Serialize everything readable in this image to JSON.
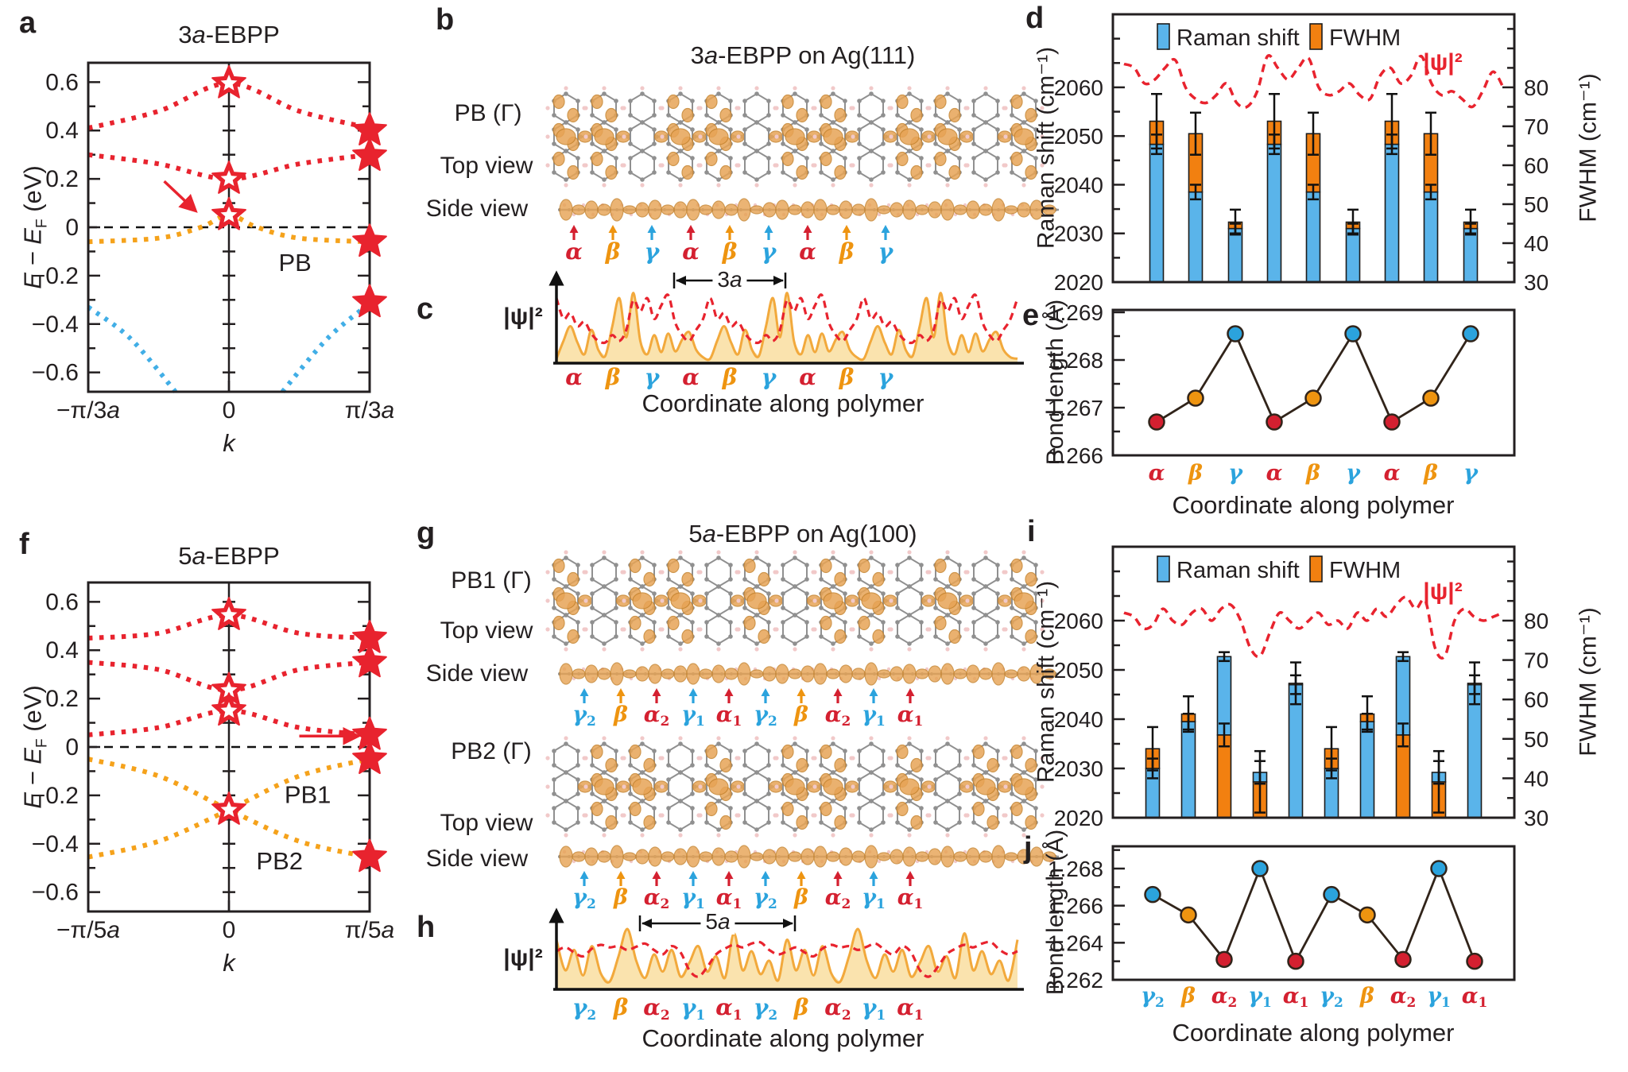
{
  "colors": {
    "red": "#e8232e",
    "orange_band": "#f5a21b",
    "blue_band": "#41aee6",
    "bar_blue": "#5ab4ea",
    "bar_orange": "#f28010",
    "line_dark": "#31241a",
    "axis": "#231f20",
    "site_red": "#d42030",
    "site_orange": "#ee9410",
    "site_blue": "#2ba3dd",
    "blob": "#e7a456",
    "blob_edge": "#c6842f",
    "atom": "#909090",
    "hydrogen": "#f1c9c9",
    "area_fill": "#fae3ae",
    "area_line": "#f2a93c"
  },
  "panel_a": {
    "label": "a",
    "title": {
      "pre": "3",
      "it": "a",
      "post": "-EBPP"
    },
    "ylabel": {
      "main": "E − E",
      "sub": "F",
      "unit": " (eV)"
    },
    "xlabel": "k",
    "xticks": [
      {
        "pre": "−π/3",
        "it": "a"
      },
      {
        "pre": "0",
        "it": ""
      },
      {
        "pre": "π/3",
        "it": "a"
      }
    ],
    "yticks": [
      "0.6",
      "0.4",
      "0.2",
      "0",
      "−0.2",
      "−0.4",
      "−0.6"
    ],
    "band_labels": [
      {
        "text": "PB",
        "k": 0.47,
        "E": -0.145
      }
    ],
    "bands": [
      {
        "color": "red",
        "pts": [
          [
            -1,
            0.41
          ],
          [
            -0.5,
            0.48
          ],
          [
            0,
            0.595
          ],
          [
            0.5,
            0.48
          ],
          [
            1,
            0.41
          ]
        ]
      },
      {
        "color": "red",
        "pts": [
          [
            -1,
            0.3
          ],
          [
            -0.5,
            0.262
          ],
          [
            0,
            0.2
          ],
          [
            0.5,
            0.262
          ],
          [
            1,
            0.3
          ]
        ]
      },
      {
        "color": "orange_band",
        "pts": [
          [
            -1,
            -0.06
          ],
          [
            -0.5,
            -0.045
          ],
          [
            -0.2,
            0.0
          ],
          [
            0,
            0.05
          ],
          [
            0.2,
            0.0
          ],
          [
            0.5,
            -0.045
          ],
          [
            1,
            -0.06
          ]
        ]
      },
      {
        "color": "blue_band",
        "pts": [
          [
            -1,
            -0.33
          ],
          [
            -0.7,
            -0.46
          ],
          [
            -0.38,
            -0.68
          ]
        ]
      },
      {
        "color": "blue_band",
        "pts": [
          [
            0.38,
            -0.68
          ],
          [
            0.7,
            -0.46
          ],
          [
            1,
            -0.315
          ]
        ]
      }
    ],
    "stars_open": [
      [
        0,
        0.595
      ],
      [
        0,
        0.2
      ],
      [
        0,
        0.05
      ]
    ],
    "stars_filled": [
      [
        1,
        0.4
      ],
      [
        1,
        0.295
      ],
      [
        1,
        -0.06
      ],
      [
        1,
        -0.31
      ]
    ],
    "arrow": {
      "k1": -0.46,
      "E1": 0.19,
      "k2": -0.25,
      "E2": 0.075
    }
  },
  "panel_f": {
    "label": "f",
    "title": {
      "pre": "5",
      "it": "a",
      "post": "-EBPP"
    },
    "ylabel": {
      "main": "E − E",
      "sub": "F",
      "unit": " (eV)"
    },
    "xlabel": "k",
    "xticks": [
      {
        "pre": "−π/5",
        "it": "a"
      },
      {
        "pre": "0",
        "it": ""
      },
      {
        "pre": "π/5",
        "it": "a"
      }
    ],
    "yticks": [
      "0.6",
      "0.4",
      "0.2",
      "0",
      "−0.2",
      "−0.4",
      "−0.6"
    ],
    "band_labels": [
      {
        "text": "PB1",
        "k": 0.56,
        "E": -0.195
      },
      {
        "text": "PB2",
        "k": 0.36,
        "E": -0.47
      }
    ],
    "bands": [
      {
        "color": "red",
        "pts": [
          [
            -1,
            0.45
          ],
          [
            -0.5,
            0.47
          ],
          [
            0,
            0.545
          ],
          [
            0.5,
            0.47
          ],
          [
            1,
            0.45
          ]
        ]
      },
      {
        "color": "red",
        "pts": [
          [
            -1,
            0.35
          ],
          [
            -0.5,
            0.32
          ],
          [
            0,
            0.235
          ],
          [
            0.5,
            0.32
          ],
          [
            1,
            0.35
          ]
        ]
      },
      {
        "color": "red",
        "pts": [
          [
            -1,
            0.05
          ],
          [
            -0.5,
            0.08
          ],
          [
            0,
            0.15
          ],
          [
            0.5,
            0.08
          ],
          [
            1,
            0.05
          ]
        ]
      },
      {
        "color": "orange_band",
        "pts": [
          [
            -1,
            -0.05
          ],
          [
            -0.5,
            -0.12
          ],
          [
            0,
            -0.26
          ],
          [
            0.5,
            -0.39
          ],
          [
            1,
            -0.455
          ]
        ]
      },
      {
        "color": "orange_band",
        "pts": [
          [
            -1,
            -0.455
          ],
          [
            -0.5,
            -0.39
          ],
          [
            0,
            -0.26
          ],
          [
            0.5,
            -0.12
          ],
          [
            1,
            -0.05
          ]
        ]
      }
    ],
    "stars_open": [
      [
        0,
        0.545
      ],
      [
        0,
        0.235
      ],
      [
        0,
        0.15
      ],
      [
        0,
        -0.26
      ]
    ],
    "stars_filled": [
      [
        1,
        0.45
      ],
      [
        1,
        0.35
      ],
      [
        1,
        0.05
      ],
      [
        1,
        -0.05
      ],
      [
        1,
        -0.455
      ]
    ],
    "arrow": {
      "k1": 0.5,
      "E1": 0.045,
      "k2": 0.9,
      "E2": 0.045
    }
  },
  "panel_b": {
    "label": "b",
    "title": {
      "pre": "3",
      "it": "a",
      "post": "-EBPP on Ag(111)"
    },
    "state_label": "PB (Γ)",
    "top_view": "Top view",
    "side_view": "Side view",
    "sites": [
      {
        "base": "α",
        "sub": "",
        "color": "site_red"
      },
      {
        "base": "β",
        "sub": "",
        "color": "site_orange"
      },
      {
        "base": "γ",
        "sub": "",
        "color": "site_blue"
      },
      {
        "base": "α",
        "sub": "",
        "color": "site_red"
      },
      {
        "base": "β",
        "sub": "",
        "color": "site_orange"
      },
      {
        "base": "γ",
        "sub": "",
        "color": "site_blue"
      },
      {
        "base": "α",
        "sub": "",
        "color": "site_red"
      },
      {
        "base": "β",
        "sub": "",
        "color": "site_orange"
      },
      {
        "base": "γ",
        "sub": "",
        "color": "site_blue"
      }
    ]
  },
  "panel_c": {
    "label": "c",
    "psi_label": "|ψ|²",
    "span_label": {
      "pre": "3",
      "it": "a"
    },
    "xlabel": "Coordinate along polymer",
    "sites": [
      {
        "base": "α",
        "sub": "",
        "color": "site_red"
      },
      {
        "base": "β",
        "sub": "",
        "color": "site_orange"
      },
      {
        "base": "γ",
        "sub": "",
        "color": "site_blue"
      },
      {
        "base": "α",
        "sub": "",
        "color": "site_red"
      },
      {
        "base": "β",
        "sub": "",
        "color": "site_orange"
      },
      {
        "base": "γ",
        "sub": "",
        "color": "site_blue"
      },
      {
        "base": "α",
        "sub": "",
        "color": "site_red"
      },
      {
        "base": "β",
        "sub": "",
        "color": "site_orange"
      },
      {
        "base": "γ",
        "sub": "",
        "color": "site_blue"
      }
    ],
    "repeat": 3,
    "orange_period": [
      0.06,
      0.3,
      0.5,
      0.28,
      0.12,
      0.45,
      0.18,
      0.1,
      0.5,
      0.88,
      0.35,
      0.95,
      0.3,
      0.12,
      0.38,
      0.15,
      0.4,
      0.16,
      0.32,
      0.42,
      0.18,
      0.08
    ],
    "red_period": [
      0.88,
      0.6,
      0.68,
      0.5,
      0.56,
      0.4,
      0.3,
      0.28,
      0.38,
      0.3,
      0.45,
      0.85,
      0.7,
      0.88,
      0.6,
      0.78,
      0.92,
      0.55,
      0.38,
      0.3,
      0.45,
      0.6
    ]
  },
  "panel_d": {
    "label": "d",
    "legend": [
      {
        "name": "Raman shift"
      },
      {
        "name": "FWHM"
      }
    ],
    "psi_label": "|ψ|²",
    "ylabel_left": "Raman shift (cm⁻¹)",
    "ylabel_right": "FWHM (cm⁻¹)",
    "yticks_left": [
      "2020",
      "2030",
      "2040",
      "2050",
      "2060"
    ],
    "yticks_right": [
      "30",
      "40",
      "50",
      "60",
      "70",
      "80"
    ],
    "bars": [
      {
        "site": "α",
        "sub": "",
        "raman": 2048.3,
        "raman_err": 2.0,
        "fwhm": 71.3,
        "fwhm_err": 7.0
      },
      {
        "site": "β",
        "sub": "",
        "raman": 2038.5,
        "raman_err": 1.5,
        "fwhm": 68.1,
        "fwhm_err": 5.4
      },
      {
        "site": "γ",
        "sub": "",
        "raman": 2031.0,
        "raman_err": 1.0,
        "fwhm": 45.4,
        "fwhm_err": 3.2
      },
      {
        "site": "α",
        "sub": "",
        "raman": 2048.3,
        "raman_err": 2.0,
        "fwhm": 71.3,
        "fwhm_err": 7.0
      },
      {
        "site": "β",
        "sub": "",
        "raman": 2038.5,
        "raman_err": 1.5,
        "fwhm": 68.1,
        "fwhm_err": 5.4
      },
      {
        "site": "γ",
        "sub": "",
        "raman": 2031.0,
        "raman_err": 1.0,
        "fwhm": 45.4,
        "fwhm_err": 3.2
      },
      {
        "site": "α",
        "sub": "",
        "raman": 2048.3,
        "raman_err": 2.0,
        "fwhm": 71.3,
        "fwhm_err": 7.0
      },
      {
        "site": "β",
        "sub": "",
        "raman": 2038.5,
        "raman_err": 1.5,
        "fwhm": 68.1,
        "fwhm_err": 5.4
      },
      {
        "site": "γ",
        "sub": "",
        "raman": 2031.0,
        "raman_err": 1.0,
        "fwhm": 45.4,
        "fwhm_err": 3.2
      }
    ],
    "psi_curve": [
      86,
      85,
      81,
      82,
      85,
      87,
      80,
      77,
      76,
      78,
      81,
      76,
      75,
      79,
      88,
      85,
      82,
      85,
      87.5,
      80,
      78,
      79,
      81,
      78,
      77,
      83,
      85,
      81,
      83,
      88,
      81,
      78,
      79,
      77,
      75,
      79,
      84,
      80
    ]
  },
  "panel_e": {
    "label": "e",
    "ylabel": "Bond length (Å)",
    "xlabel": "Coordinate along polymer",
    "yticks": [
      "1.266",
      "1.267",
      "1.268",
      "1.269"
    ],
    "points": [
      {
        "base": "α",
        "sub": "",
        "color": "site_red",
        "value": 1.2667
      },
      {
        "base": "β",
        "sub": "",
        "color": "site_orange",
        "value": 1.2672
      },
      {
        "base": "γ",
        "sub": "",
        "color": "site_blue",
        "value": 1.26855
      },
      {
        "base": "α",
        "sub": "",
        "color": "site_red",
        "value": 1.2667
      },
      {
        "base": "β",
        "sub": "",
        "color": "site_orange",
        "value": 1.2672
      },
      {
        "base": "γ",
        "sub": "",
        "color": "site_blue",
        "value": 1.26855
      },
      {
        "base": "α",
        "sub": "",
        "color": "site_red",
        "value": 1.2667
      },
      {
        "base": "β",
        "sub": "",
        "color": "site_orange",
        "value": 1.2672
      },
      {
        "base": "γ",
        "sub": "",
        "color": "site_blue",
        "value": 1.26855
      }
    ]
  },
  "panel_g": {
    "label": "g",
    "title": {
      "pre": "5",
      "it": "a",
      "post": "-EBPP on Ag(100)"
    },
    "rows": [
      {
        "state_label": "PB1 (Γ)",
        "top_view": "Top view",
        "side_view": "Side view"
      },
      {
        "state_label": "PB2 (Γ)",
        "top_view": "Top view",
        "side_view": "Side view"
      }
    ],
    "sites": [
      {
        "base": "γ",
        "sub": "2",
        "color": "site_blue"
      },
      {
        "base": "β",
        "sub": "",
        "color": "site_orange"
      },
      {
        "base": "α",
        "sub": "2",
        "color": "site_red"
      },
      {
        "base": "γ",
        "sub": "1",
        "color": "site_blue"
      },
      {
        "base": "α",
        "sub": "1",
        "color": "site_red"
      },
      {
        "base": "γ",
        "sub": "2",
        "color": "site_blue"
      },
      {
        "base": "β",
        "sub": "",
        "color": "site_orange"
      },
      {
        "base": "α",
        "sub": "2",
        "color": "site_red"
      },
      {
        "base": "γ",
        "sub": "1",
        "color": "site_blue"
      },
      {
        "base": "α",
        "sub": "1",
        "color": "site_red"
      }
    ]
  },
  "panel_h": {
    "label": "h",
    "psi_label": "|ψ|²",
    "span_label": {
      "pre": "5",
      "it": "a"
    },
    "xlabel": "Coordinate along polymer",
    "sites": [
      {
        "base": "γ",
        "sub": "2",
        "color": "site_blue"
      },
      {
        "base": "β",
        "sub": "",
        "color": "site_orange"
      },
      {
        "base": "α",
        "sub": "2",
        "color": "site_red"
      },
      {
        "base": "γ",
        "sub": "1",
        "color": "site_blue"
      },
      {
        "base": "α",
        "sub": "1",
        "color": "site_red"
      },
      {
        "base": "γ",
        "sub": "2",
        "color": "site_blue"
      },
      {
        "base": "β",
        "sub": "",
        "color": "site_orange"
      },
      {
        "base": "α",
        "sub": "2",
        "color": "site_red"
      },
      {
        "base": "γ",
        "sub": "1",
        "color": "site_blue"
      },
      {
        "base": "α",
        "sub": "1",
        "color": "site_red"
      }
    ],
    "repeat": 2,
    "orange_period": [
      0.78,
      0.3,
      0.62,
      0.22,
      0.68,
      0.25,
      0.12,
      0.52,
      0.95,
      0.45,
      0.18,
      0.55,
      0.28,
      0.62,
      0.2,
      0.42,
      0.68,
      0.28,
      0.52,
      0.18,
      0.88,
      0.3,
      0.6,
      0.24,
      0.45,
      0.14
    ],
    "red_period": [
      0.6,
      0.66,
      0.58,
      0.52,
      0.64,
      0.7,
      0.66,
      0.68,
      0.62,
      0.67,
      0.72,
      0.62,
      0.55,
      0.68,
      0.58,
      0.3,
      0.2,
      0.35,
      0.55,
      0.64,
      0.7,
      0.66,
      0.72,
      0.74,
      0.62,
      0.55
    ]
  },
  "panel_i": {
    "label": "i",
    "legend": [
      {
        "name": "Raman shift"
      },
      {
        "name": "FWHM"
      }
    ],
    "psi_label": "|ψ|²",
    "ylabel_left": "Raman shift (cm⁻¹)",
    "ylabel_right": "FWHM (cm⁻¹)",
    "yticks_left": [
      "2020",
      "2030",
      "2040",
      "2050",
      "2060"
    ],
    "yticks_right": [
      "30",
      "40",
      "50",
      "60",
      "70",
      "80"
    ],
    "bars": [
      {
        "site": "γ",
        "sub": "2",
        "raman": 2030.0,
        "raman_err": 2.0,
        "fwhm": 47.5,
        "fwhm_err": 5.5
      },
      {
        "site": "β",
        "sub": "",
        "raman": 2039.5,
        "raman_err": 1.6,
        "fwhm": 56.3,
        "fwhm_err": 4.5
      },
      {
        "site": "α",
        "sub": "2",
        "raman": 2052.7,
        "raman_err": 0.9,
        "fwhm": 51.0,
        "fwhm_err": 2.9
      },
      {
        "site": "γ",
        "sub": "1",
        "raman": 2029.2,
        "raman_err": 2.3,
        "fwhm": 39.1,
        "fwhm_err": 7.8
      },
      {
        "site": "α",
        "sub": "1",
        "raman": 2047.0,
        "raman_err": 1.9,
        "fwhm": 64.1,
        "fwhm_err": 5.3
      },
      {
        "site": "γ",
        "sub": "2",
        "raman": 2030.0,
        "raman_err": 2.0,
        "fwhm": 47.5,
        "fwhm_err": 5.5
      },
      {
        "site": "β",
        "sub": "",
        "raman": 2039.5,
        "raman_err": 1.6,
        "fwhm": 56.3,
        "fwhm_err": 4.5
      },
      {
        "site": "α",
        "sub": "2",
        "raman": 2052.7,
        "raman_err": 0.9,
        "fwhm": 51.0,
        "fwhm_err": 2.9
      },
      {
        "site": "γ",
        "sub": "1",
        "raman": 2029.2,
        "raman_err": 2.3,
        "fwhm": 39.1,
        "fwhm_err": 7.8
      },
      {
        "site": "α",
        "sub": "1",
        "raman": 2047.0,
        "raman_err": 1.9,
        "fwhm": 64.1,
        "fwhm_err": 5.3
      }
    ],
    "psi_curve": [
      82,
      81,
      78,
      79,
      83,
      80,
      79,
      82,
      83,
      80,
      83,
      84,
      80,
      73,
      71,
      77,
      82,
      80,
      78,
      80,
      82,
      79,
      80,
      78,
      82,
      80,
      83,
      81,
      84,
      86,
      83,
      85,
      73,
      71,
      80,
      83,
      81,
      80,
      81,
      82
    ]
  },
  "panel_j": {
    "label": "j",
    "ylabel": "Bond length (Å)",
    "xlabel": "Coordinate along polymer",
    "yticks": [
      "1.262",
      "1.264",
      "1.266",
      "1.268"
    ],
    "points": [
      {
        "base": "γ",
        "sub": "2",
        "color": "site_blue",
        "value": 1.2666
      },
      {
        "base": "β",
        "sub": "",
        "color": "site_orange",
        "value": 1.2655
      },
      {
        "base": "α",
        "sub": "2",
        "color": "site_red",
        "value": 1.2631
      },
      {
        "base": "γ",
        "sub": "1",
        "color": "site_blue",
        "value": 1.268
      },
      {
        "base": "α",
        "sub": "1",
        "color": "site_red",
        "value": 1.263
      },
      {
        "base": "γ",
        "sub": "2",
        "color": "site_blue",
        "value": 1.2666
      },
      {
        "base": "β",
        "sub": "",
        "color": "site_orange",
        "value": 1.2655
      },
      {
        "base": "α",
        "sub": "2",
        "color": "site_red",
        "value": 1.2631
      },
      {
        "base": "γ",
        "sub": "1",
        "color": "site_blue",
        "value": 1.268
      },
      {
        "base": "α",
        "sub": "1",
        "color": "site_red",
        "value": 1.263
      }
    ]
  }
}
